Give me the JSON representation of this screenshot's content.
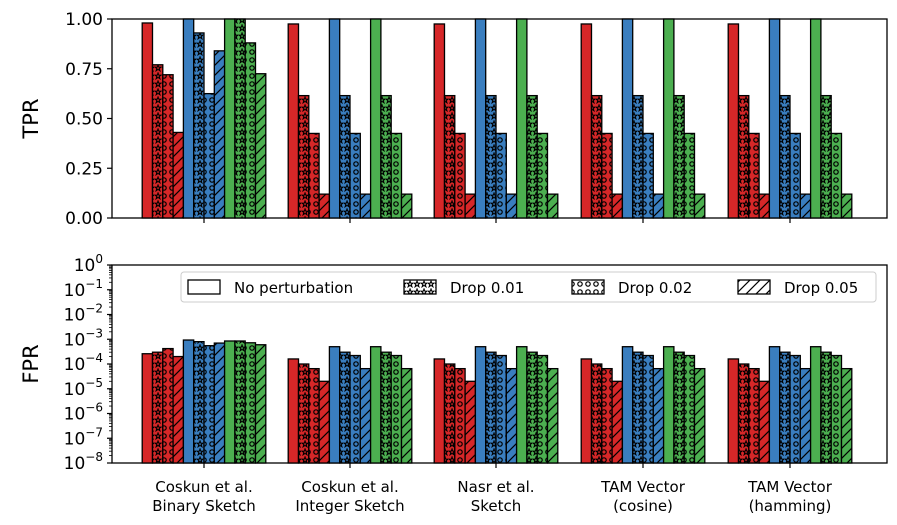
{
  "chart_data": [
    {
      "type": "bar",
      "panel": "top",
      "ylabel": "TPR",
      "yscale": "linear",
      "ylim": [
        0,
        1.0
      ],
      "yticks": [
        "0.00",
        "0.25",
        "0.50",
        "0.75",
        "1.00"
      ],
      "ytick_values": [
        0,
        0.25,
        0.5,
        0.75,
        1.0
      ],
      "categories": [
        "Coskun et al.\nBinary Sketch",
        "Coskun et al.\nInteger Sketch",
        "Nasr et al.\nSketch",
        "TAM Vector\n(cosine)",
        "TAM Vector\n(hamming)"
      ],
      "series": [
        {
          "name": "Red / No perturbation",
          "color": "#d62728",
          "pattern": "none",
          "values": [
            0.98,
            0.975,
            0.975,
            0.975,
            0.975
          ]
        },
        {
          "name": "Red / Drop 0.01",
          "color": "#d62728",
          "pattern": "stars",
          "values": [
            0.77,
            0.615,
            0.615,
            0.615,
            0.615
          ]
        },
        {
          "name": "Red / Drop 0.02",
          "color": "#d62728",
          "pattern": "circles",
          "values": [
            0.72,
            0.425,
            0.425,
            0.425,
            0.425
          ]
        },
        {
          "name": "Red / Drop 0.05",
          "color": "#d62728",
          "pattern": "diagonal",
          "values": [
            0.43,
            0.12,
            0.12,
            0.12,
            0.12
          ]
        },
        {
          "name": "Blue / No perturbation",
          "color": "#3a7ebf",
          "pattern": "none",
          "values": [
            1.0,
            1.0,
            1.0,
            1.0,
            1.0
          ]
        },
        {
          "name": "Blue / Drop 0.01",
          "color": "#3a7ebf",
          "pattern": "stars",
          "values": [
            0.93,
            0.615,
            0.615,
            0.615,
            0.615
          ]
        },
        {
          "name": "Blue / Drop 0.02",
          "color": "#3a7ebf",
          "pattern": "circles",
          "values": [
            0.625,
            0.425,
            0.425,
            0.425,
            0.425
          ]
        },
        {
          "name": "Blue / Drop 0.05",
          "color": "#3a7ebf",
          "pattern": "diagonal",
          "values": [
            0.84,
            0.12,
            0.12,
            0.12,
            0.12
          ]
        },
        {
          "name": "Green / No perturbation",
          "color": "#4caf50",
          "pattern": "none",
          "values": [
            1.0,
            1.0,
            1.0,
            1.0,
            1.0
          ]
        },
        {
          "name": "Green / Drop 0.01",
          "color": "#4caf50",
          "pattern": "stars",
          "values": [
            1.0,
            0.615,
            0.615,
            0.615,
            0.615
          ]
        },
        {
          "name": "Green / Drop 0.02",
          "color": "#4caf50",
          "pattern": "circles",
          "values": [
            0.88,
            0.425,
            0.425,
            0.425,
            0.425
          ]
        },
        {
          "name": "Green / Drop 0.05",
          "color": "#4caf50",
          "pattern": "diagonal",
          "values": [
            0.725,
            0.12,
            0.12,
            0.12,
            0.12
          ]
        }
      ]
    },
    {
      "type": "bar",
      "panel": "bottom",
      "ylabel": "FPR",
      "yscale": "log",
      "ylim_exponents": [
        -8,
        0
      ],
      "ytick_base": "10",
      "ytick_exponents": [
        "0",
        "−1",
        "−2",
        "−3",
        "−4",
        "−5",
        "−6",
        "−7",
        "−8"
      ],
      "categories": [
        "Coskun et al.\nBinary Sketch",
        "Coskun et al.\nInteger Sketch",
        "Nasr et al.\nSketch",
        "TAM Vector\n(cosine)",
        "TAM Vector\n(hamming)"
      ],
      "series": [
        {
          "name": "Red / No perturbation",
          "color": "#d62728",
          "pattern": "none",
          "values": [
            0.00026,
            0.00016,
            0.00016,
            0.00016,
            0.00016
          ]
        },
        {
          "name": "Red / Drop 0.01",
          "color": "#d62728",
          "pattern": "stars",
          "values": [
            0.0003,
            0.0001,
            0.0001,
            0.0001,
            0.0001
          ]
        },
        {
          "name": "Red / Drop 0.02",
          "color": "#d62728",
          "pattern": "circles",
          "values": [
            0.00042,
            6.5e-05,
            6.5e-05,
            6.5e-05,
            6.5e-05
          ]
        },
        {
          "name": "Red / Drop 0.05",
          "color": "#d62728",
          "pattern": "diagonal",
          "values": [
            0.0002,
            2e-05,
            2e-05,
            2e-05,
            2e-05
          ]
        },
        {
          "name": "Blue / No perturbation",
          "color": "#3a7ebf",
          "pattern": "none",
          "values": [
            0.00093,
            0.0005,
            0.0005,
            0.0005,
            0.0005
          ]
        },
        {
          "name": "Blue / Drop 0.01",
          "color": "#3a7ebf",
          "pattern": "stars",
          "values": [
            0.0008,
            0.0003,
            0.0003,
            0.0003,
            0.0003
          ]
        },
        {
          "name": "Blue / Drop 0.02",
          "color": "#3a7ebf",
          "pattern": "circles",
          "values": [
            0.00055,
            0.00022,
            0.00022,
            0.00022,
            0.00022
          ]
        },
        {
          "name": "Blue / Drop 0.05",
          "color": "#3a7ebf",
          "pattern": "diagonal",
          "values": [
            0.0007,
            6.5e-05,
            6.5e-05,
            6.5e-05,
            6.5e-05
          ]
        },
        {
          "name": "Green / No perturbation",
          "color": "#4caf50",
          "pattern": "none",
          "values": [
            0.00085,
            0.0005,
            0.0005,
            0.0005,
            0.0005
          ]
        },
        {
          "name": "Green / Drop 0.01",
          "color": "#4caf50",
          "pattern": "stars",
          "values": [
            0.00085,
            0.0003,
            0.0003,
            0.0003,
            0.0003
          ]
        },
        {
          "name": "Green / Drop 0.02",
          "color": "#4caf50",
          "pattern": "circles",
          "values": [
            0.00072,
            0.00022,
            0.00022,
            0.00022,
            0.00022
          ]
        },
        {
          "name": "Green / Drop 0.05",
          "color": "#4caf50",
          "pattern": "diagonal",
          "values": [
            0.0006,
            6.5e-05,
            6.5e-05,
            6.5e-05,
            6.5e-05
          ]
        }
      ],
      "legend": {
        "placement": "top-right",
        "entries": [
          {
            "label": "No perturbation",
            "pattern": "none"
          },
          {
            "label": "Drop 0.01",
            "pattern": "stars"
          },
          {
            "label": "Drop 0.02",
            "pattern": "circles"
          },
          {
            "label": "Drop 0.05",
            "pattern": "diagonal"
          }
        ]
      }
    }
  ]
}
